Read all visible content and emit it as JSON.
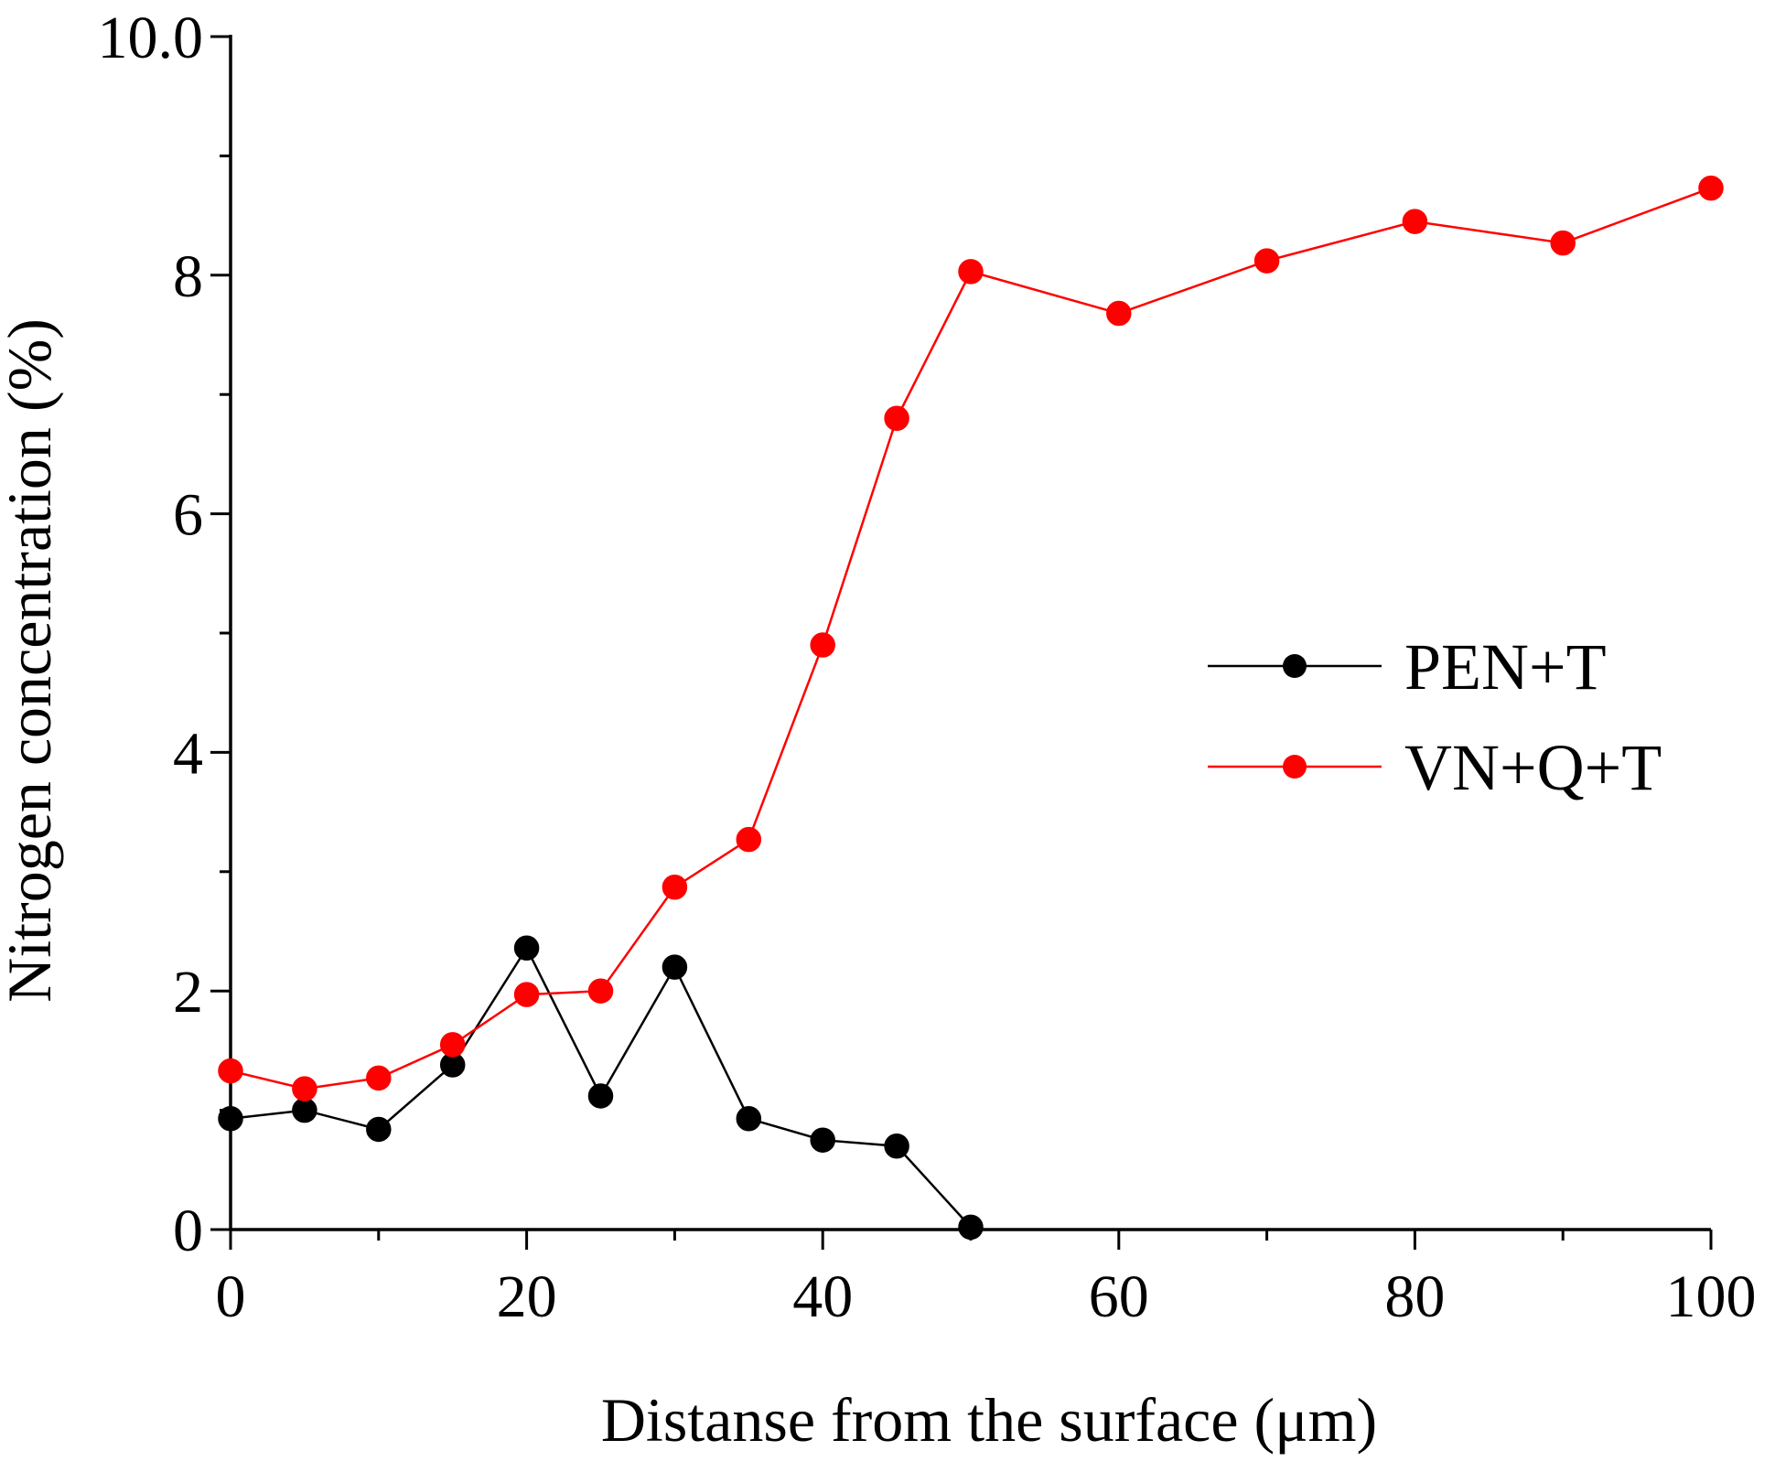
{
  "chart_data": {
    "type": "line",
    "title": "",
    "xlabel": "Distanse from the surface (μm)",
    "ylabel": "Nitrogen concentration (%)",
    "xlim": [
      0,
      100
    ],
    "ylim": [
      0,
      10
    ],
    "xticks": [
      0,
      20,
      40,
      60,
      80,
      100
    ],
    "yticks": [
      0,
      2,
      4,
      6,
      8,
      10
    ],
    "xtick_labels": [
      "0",
      "20",
      "40",
      "60",
      "80",
      "100"
    ],
    "ytick_labels": [
      "0",
      "2",
      "4",
      "6",
      "8",
      "10.0"
    ],
    "grid": false,
    "legend_position": "center-right",
    "series": [
      {
        "name": "PEN+T",
        "color": "#000000",
        "x": [
          0,
          5,
          10,
          15,
          20,
          25,
          30,
          35,
          40,
          45,
          50
        ],
        "y": [
          0.93,
          1.0,
          0.84,
          1.38,
          2.36,
          1.12,
          2.2,
          0.93,
          0.75,
          0.7,
          0.02
        ]
      },
      {
        "name": "VN+Q+T",
        "color": "#ff0000",
        "x": [
          0,
          5,
          10,
          15,
          20,
          25,
          30,
          35,
          40,
          45,
          50,
          60,
          70,
          80,
          90,
          100
        ],
        "y": [
          1.33,
          1.18,
          1.27,
          1.55,
          1.97,
          2.0,
          2.87,
          3.27,
          4.9,
          6.8,
          8.03,
          7.68,
          8.12,
          8.45,
          8.27,
          8.73
        ]
      }
    ]
  }
}
